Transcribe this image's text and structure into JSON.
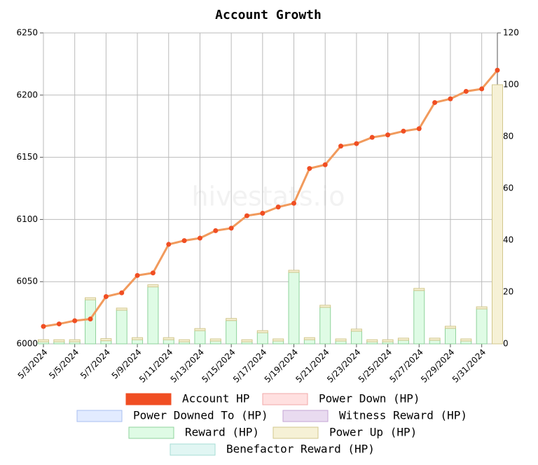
{
  "chart_data": {
    "type": "combo",
    "title": "Account Growth",
    "watermark": "hivestats.io",
    "categories": [
      "5/3/2024",
      null,
      "5/5/2024",
      null,
      "5/7/2024",
      null,
      "5/9/2024",
      null,
      "5/11/2024",
      null,
      "5/13/2024",
      null,
      "5/15/2024",
      null,
      "5/17/2024",
      null,
      "5/19/2024",
      null,
      "5/21/2024",
      null,
      "5/23/2024",
      null,
      "5/25/2024",
      null,
      "5/27/2024",
      null,
      "5/29/2024",
      null,
      "5/31/2024",
      null
    ],
    "ylim": [
      6000,
      6250
    ],
    "yticks": [
      6000,
      6050,
      6100,
      6150,
      6200,
      6250
    ],
    "y2lim": [
      0,
      120
    ],
    "y2ticks": [
      0,
      20,
      40,
      60,
      80,
      100,
      120
    ],
    "grid": true,
    "series": [
      {
        "name": "Account HP",
        "type": "line",
        "axis": "y",
        "color": "#f04e23",
        "line_color": "#f19a5c",
        "values": [
          6014,
          6016,
          6018.6,
          6020,
          6038,
          6041,
          6055,
          6057,
          6080,
          6083,
          6085,
          6091,
          6093,
          6103,
          6105,
          6110,
          6113,
          6141,
          6144,
          6159,
          6161,
          6166,
          6168,
          6171,
          6173,
          6194,
          6197,
          6203,
          6205,
          6220
        ]
      },
      {
        "name": "Power Down (HP)",
        "type": "bar",
        "axis": "y2",
        "color": "#ffe0e0",
        "border": "#f0a8a8"
      },
      {
        "name": "Power Downed To (HP)",
        "type": "bar",
        "axis": "y2",
        "color": "#e2ebff",
        "border": "#a8bff0"
      },
      {
        "name": "Witness Reward (HP)",
        "type": "bar",
        "axis": "y2",
        "color": "#e9dbf0",
        "border": "#c4a6d4"
      },
      {
        "name": "Reward (HP)",
        "type": "bar",
        "axis": "y2",
        "color": "#dffbe5",
        "border": "#8fd39c",
        "values": [
          0.8,
          0.8,
          0.8,
          17,
          1.2,
          13,
          1.6,
          22,
          1.6,
          0.8,
          5.1,
          1.1,
          9,
          0.8,
          4.3,
          1.1,
          27.6,
          1.6,
          14.1,
          1.1,
          4.9,
          0.8,
          0.8,
          1.4,
          20.6,
          1.4,
          6,
          1.1,
          13.5,
          0
        ]
      },
      {
        "name": "Power Up (HP)",
        "type": "bar",
        "axis": "y2",
        "color": "#f6f1d6",
        "border": "#d2c78c",
        "values": [
          0.8,
          0.8,
          0.8,
          0.8,
          0.8,
          0.8,
          0.8,
          0.8,
          0.8,
          0.8,
          0.8,
          0.8,
          0.8,
          0.8,
          0.8,
          0.8,
          0.8,
          0.8,
          0.8,
          0.8,
          0.8,
          0.8,
          0.8,
          0.8,
          0.8,
          0.8,
          0.8,
          0.8,
          0.8,
          100
        ]
      },
      {
        "name": "Benefactor Reward (HP)",
        "type": "bar",
        "axis": "y2",
        "color": "#e1f6f3",
        "border": "#a6dcd4"
      }
    ]
  }
}
